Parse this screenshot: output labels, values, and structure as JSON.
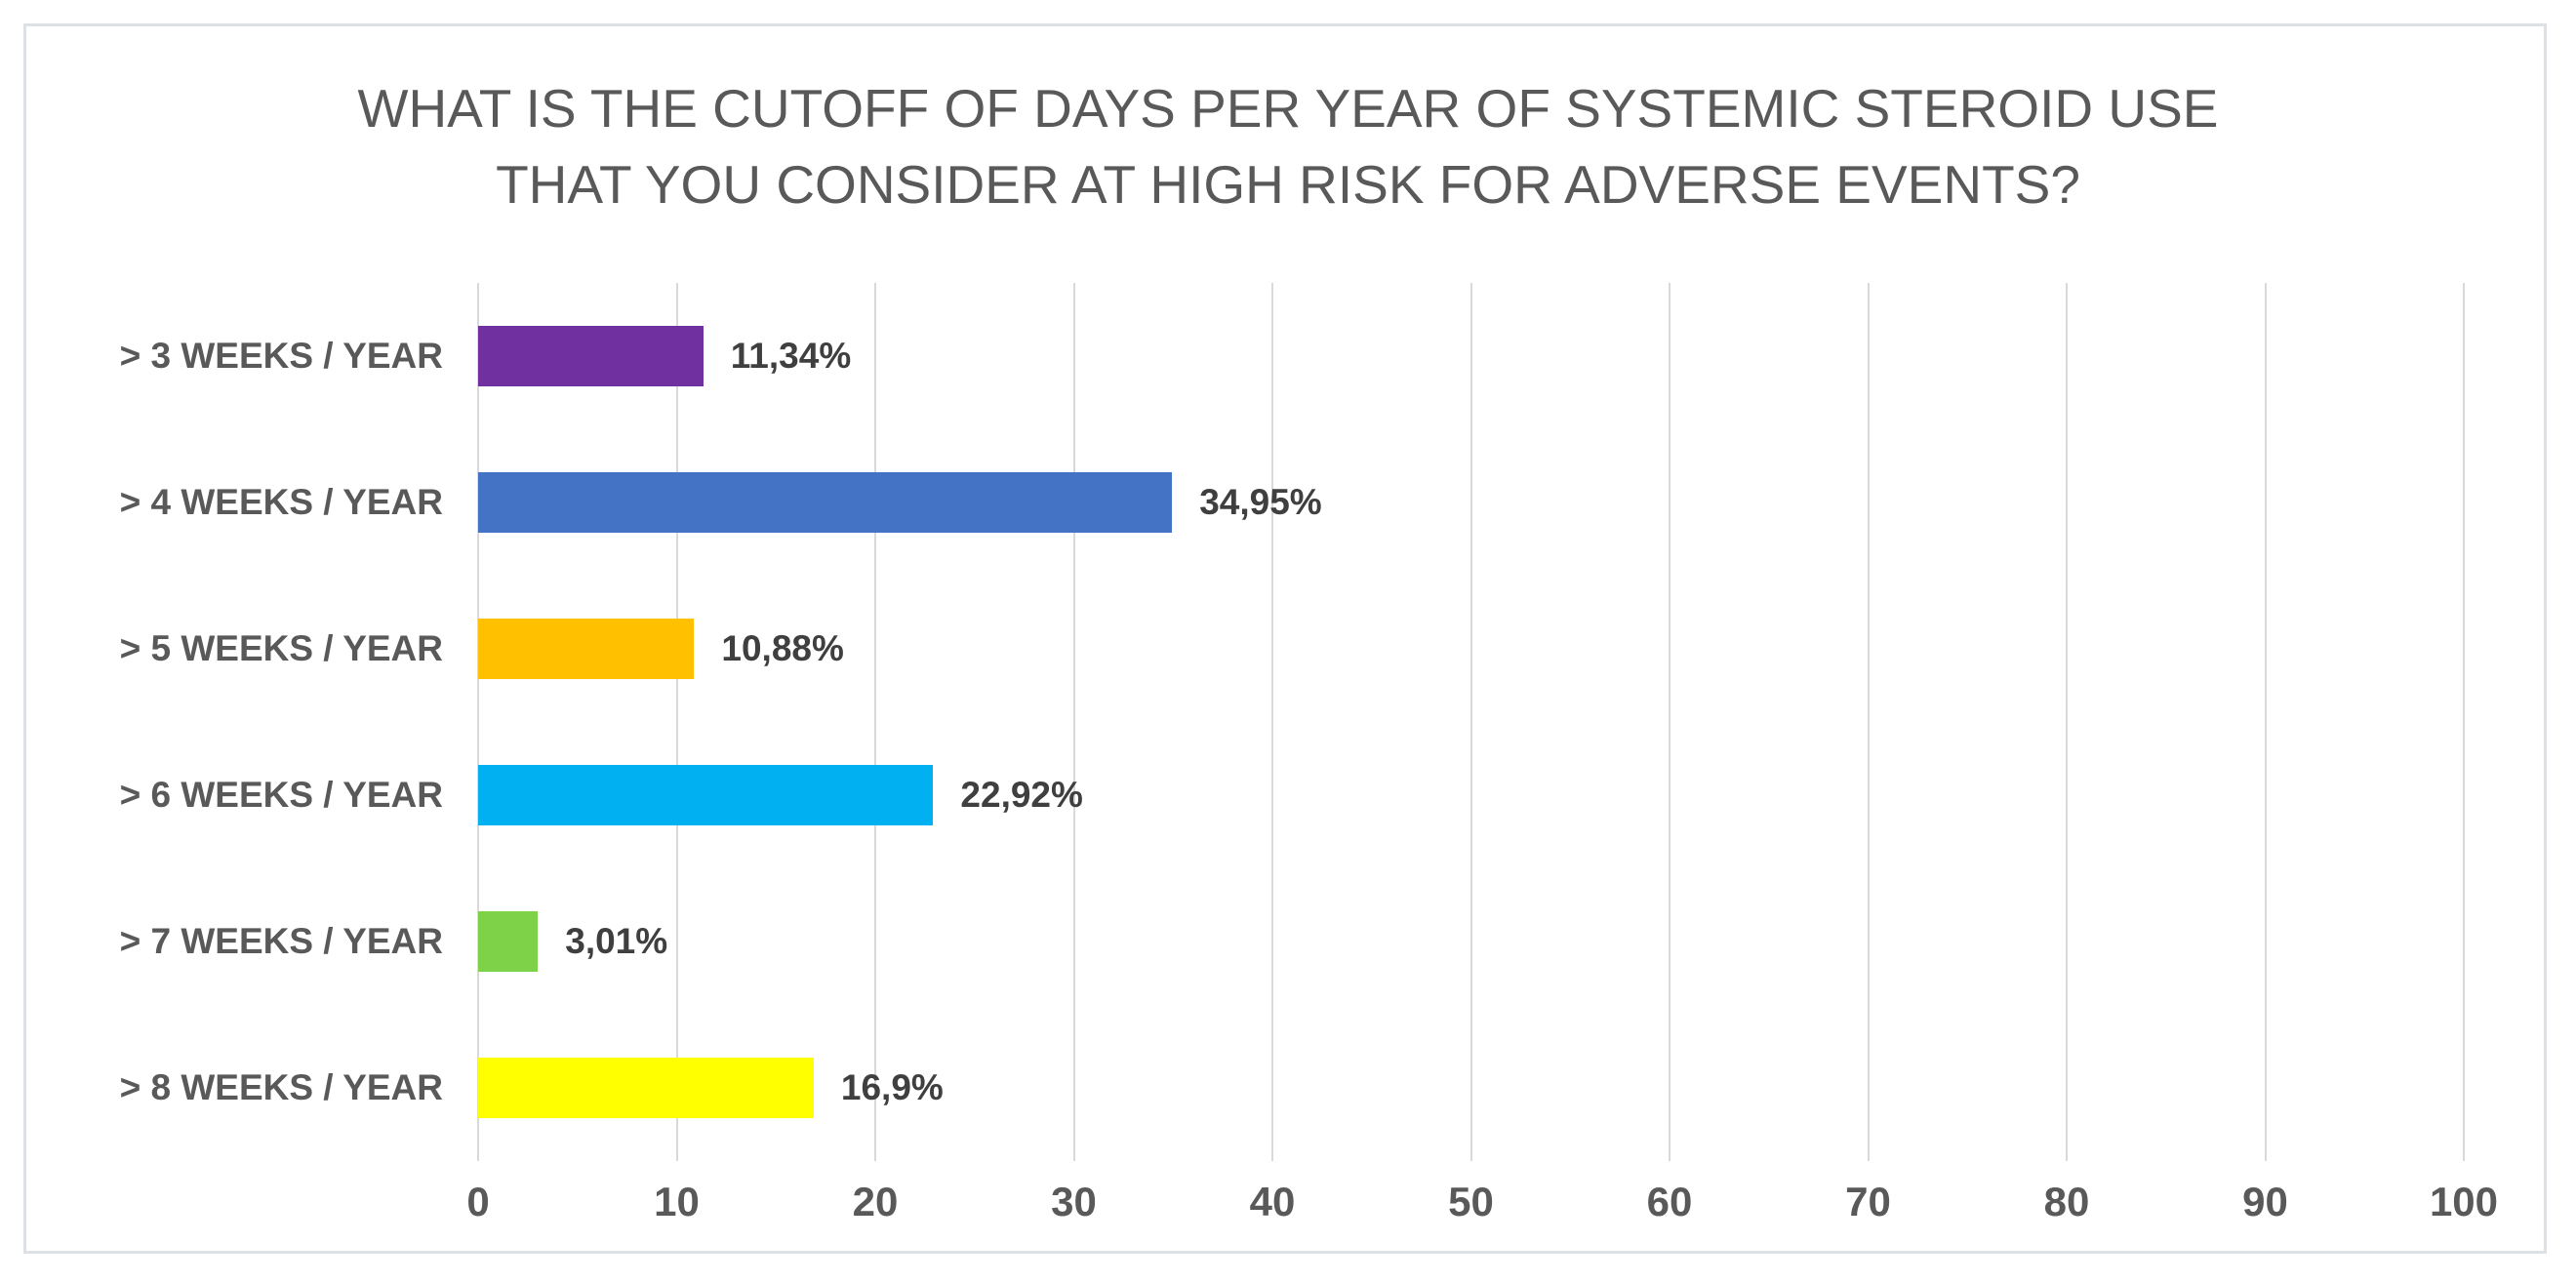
{
  "chart_data": {
    "type": "bar",
    "orientation": "horizontal",
    "title_line1": "WHAT IS THE CUTOFF OF DAYS PER YEAR OF SYSTEMIC STEROID USE",
    "title_line2": "THAT YOU CONSIDER AT HIGH RISK FOR ADVERSE EVENTS?",
    "categories": [
      "> 3 WEEKS / YEAR",
      "> 4 WEEKS / YEAR",
      "> 5 WEEKS / YEAR",
      "> 6 WEEKS / YEAR",
      "> 7 WEEKS / YEAR",
      "> 8 WEEKS / YEAR"
    ],
    "values": [
      11.34,
      34.95,
      10.88,
      22.92,
      3.01,
      16.9
    ],
    "value_labels": [
      "11,34%",
      "34,95%",
      "10,88%",
      "22,92%",
      "3,01%",
      "16,9%"
    ],
    "bar_colors": [
      "#7030A0",
      "#4472C4",
      "#FFC000",
      "#00B0F0",
      "#7DD248",
      "#FFFF00"
    ],
    "x_ticks": [
      "0",
      "10",
      "20",
      "30",
      "40",
      "50",
      "60",
      "70",
      "80",
      "90",
      "100"
    ],
    "xlim": [
      0,
      100
    ],
    "xlabel": "",
    "ylabel": "",
    "grid": "vertical",
    "gridline_color": "#d9d9d9",
    "title_color": "#595959",
    "label_color": "#595959",
    "value_label_color": "#3f3f3f",
    "frame_border_color": "#dde1e6",
    "legend": "none"
  }
}
